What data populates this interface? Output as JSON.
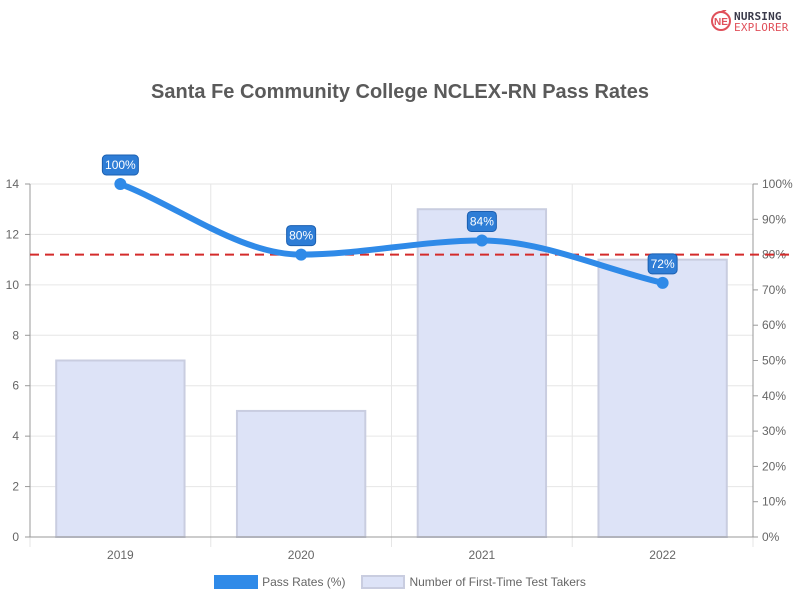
{
  "logo": {
    "line1": "NURSING",
    "line2": "EXPLORER",
    "initials": "NE"
  },
  "colors": {
    "line": "#2f8ae8",
    "label_bg": "#2e7dd6",
    "bar_fill": "#dde3f7",
    "bar_stroke": "#c9cde0",
    "reference_line": "#d42b2b",
    "grid": "#e6e6e6",
    "axis": "#999999"
  },
  "chart_data": {
    "type": "bar",
    "title": "Santa Fe Community College NCLEX-RN Pass Rates",
    "categories": [
      "2019",
      "2020",
      "2021",
      "2022"
    ],
    "series": [
      {
        "name": "Pass Rates (%)",
        "type": "line",
        "axis": "right",
        "values": [
          100,
          80,
          84,
          72
        ],
        "labels": [
          "100%",
          "80%",
          "84%",
          "72%"
        ]
      },
      {
        "name": "Number of First-Time Test Takers",
        "type": "bar",
        "axis": "left",
        "values": [
          7,
          5,
          13,
          11
        ]
      }
    ],
    "left_axis": {
      "ylim": [
        0,
        14
      ],
      "ticks": [
        "0",
        "2",
        "4",
        "6",
        "8",
        "10",
        "12",
        "14"
      ]
    },
    "right_axis": {
      "ylim": [
        0,
        100
      ],
      "ticks": [
        "0%",
        "10%",
        "20%",
        "30%",
        "40%",
        "50%",
        "60%",
        "70%",
        "80%",
        "90%",
        "100%"
      ]
    },
    "reference_line": {
      "value": 80,
      "axis": "right",
      "style": "dashed"
    },
    "grid": true,
    "legend": "bottom"
  }
}
